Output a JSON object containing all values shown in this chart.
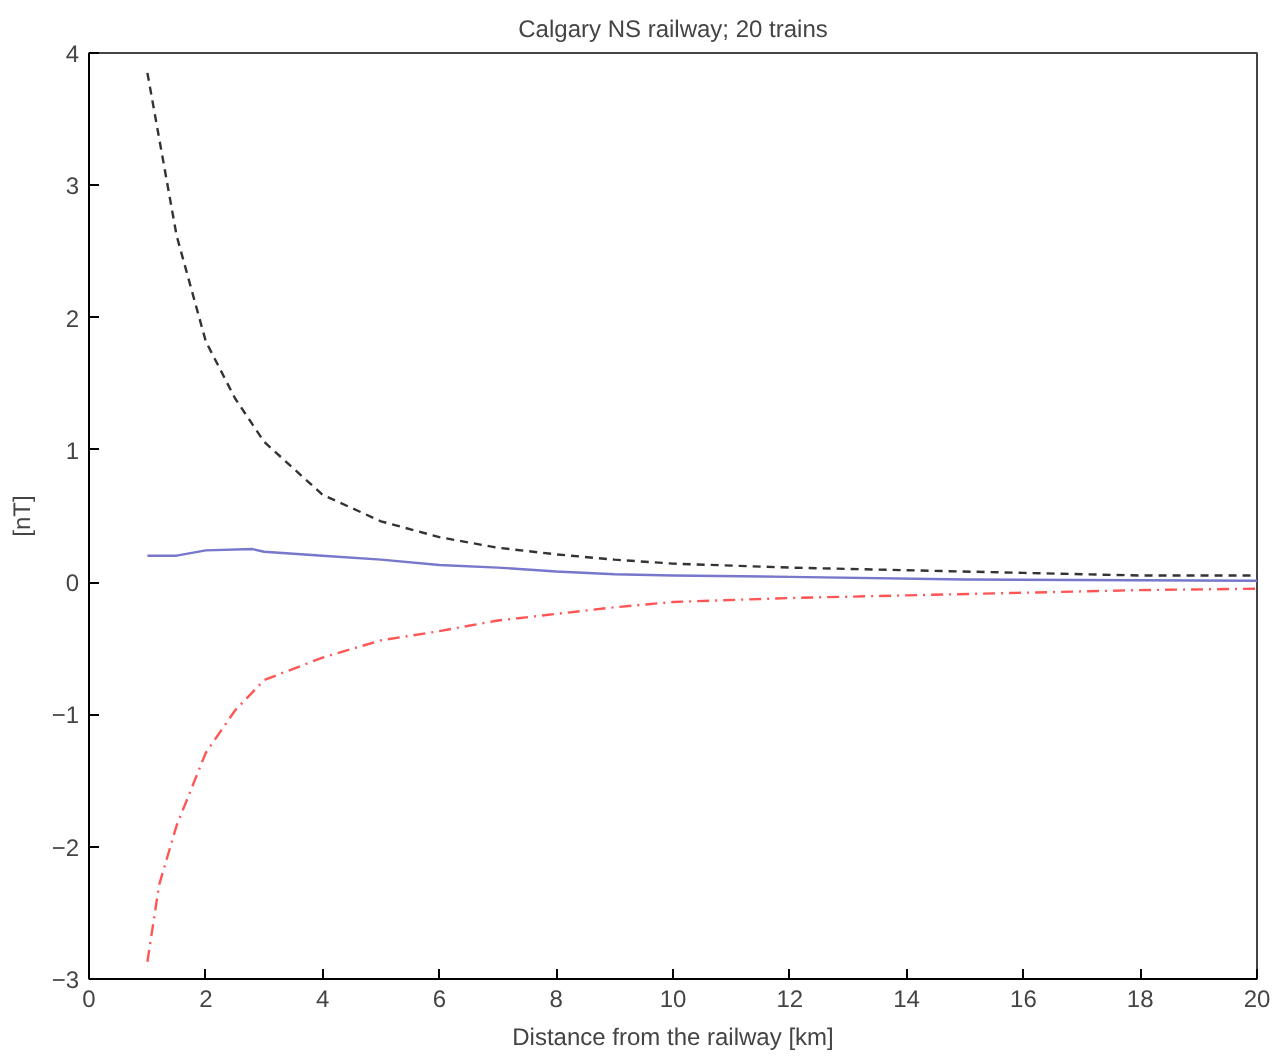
{
  "chart_data": {
    "type": "line",
    "title": "Calgary NS railway; 20 trains",
    "xlabel": "Distance from the railway [km]",
    "ylabel": "[nT]",
    "xlim": [
      0,
      20
    ],
    "ylim": [
      -3,
      4
    ],
    "xticks": [
      0,
      2,
      4,
      6,
      8,
      10,
      12,
      14,
      16,
      18,
      20
    ],
    "yticks": [
      -3,
      -2,
      -1,
      0,
      1,
      2,
      3,
      4
    ],
    "grid": false,
    "series": [
      {
        "color": "#333333",
        "line_style": "dashed",
        "x": [
          1,
          1.5,
          2,
          2.5,
          3,
          4,
          5,
          6,
          7,
          8,
          9,
          10,
          12,
          14,
          16,
          18,
          20
        ],
        "values": [
          3.85,
          2.62,
          1.82,
          1.39,
          1.06,
          0.66,
          0.46,
          0.34,
          0.26,
          0.21,
          0.17,
          0.14,
          0.11,
          0.09,
          0.07,
          0.05,
          0.05
        ]
      },
      {
        "color": "#7777cc",
        "line_style": "solid",
        "x": [
          1,
          1.5,
          2,
          2.8,
          3,
          4,
          5,
          6,
          7,
          8,
          9,
          10,
          12,
          15,
          20
        ],
        "values": [
          0.2,
          0.2,
          0.24,
          0.25,
          0.23,
          0.2,
          0.17,
          0.13,
          0.11,
          0.08,
          0.06,
          0.05,
          0.04,
          0.02,
          0.01
        ]
      },
      {
        "color": "#ff5555",
        "line_style": "dashdot",
        "x": [
          1,
          1.2,
          1.5,
          2,
          2.5,
          3,
          4,
          5,
          6,
          7,
          8,
          9,
          10,
          12,
          14,
          16,
          18,
          20
        ],
        "values": [
          -2.87,
          -2.29,
          -1.84,
          -1.29,
          -0.97,
          -0.74,
          -0.57,
          -0.44,
          -0.37,
          -0.29,
          -0.24,
          -0.19,
          -0.15,
          -0.12,
          -0.1,
          -0.08,
          -0.06,
          -0.05
        ]
      }
    ]
  }
}
